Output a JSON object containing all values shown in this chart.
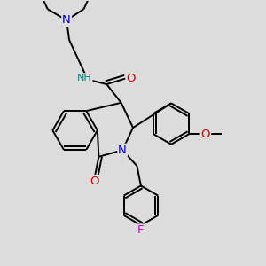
{
  "bg_color": "#dcdcdc",
  "bond_color": "#000000",
  "bond_width": 1.4,
  "atom_colors": {
    "N": "#0000cc",
    "O": "#cc0000",
    "F": "#cc00cc",
    "NH": "#008080",
    "C": "#000000"
  },
  "font_size": 8.5
}
